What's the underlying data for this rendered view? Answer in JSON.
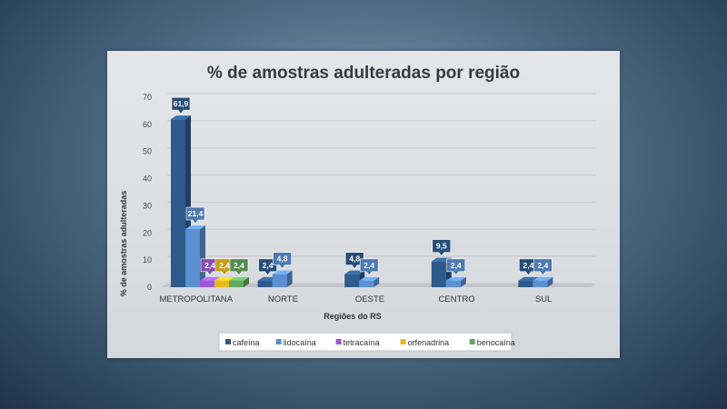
{
  "chart_data": {
    "type": "bar",
    "title": "% de amostras adulteradas por região",
    "xlabel": "Regiões do RS",
    "ylabel": "% de amostras adulteradas",
    "ylim": [
      0,
      70
    ],
    "yticks": [
      0,
      10,
      20,
      30,
      40,
      50,
      60,
      70
    ],
    "grid": true,
    "legend_position": "bottom",
    "categories": [
      "METROPOLITANA",
      "NORTE",
      "OESTE",
      "CENTRO",
      "SUL"
    ],
    "series": [
      {
        "name": "cafeína",
        "color": "#2e5a8c",
        "values": [
          61.9,
          2.4,
          4.8,
          9.5,
          2.4
        ],
        "labels": [
          "61,9",
          "2,4",
          "4,8",
          "9,5",
          "2,4"
        ]
      },
      {
        "name": "lidocaína",
        "color": "#5b8fd0",
        "values": [
          21.4,
          4.8,
          2.4,
          2.4,
          2.4
        ],
        "labels": [
          "21,4",
          "4,8",
          "2,4",
          "2,4",
          "2,4"
        ]
      },
      {
        "name": "tetracaína",
        "color": "#9b59d6",
        "values": [
          2.4,
          null,
          null,
          null,
          null
        ],
        "labels": [
          "2,4",
          "",
          "",
          "",
          ""
        ]
      },
      {
        "name": "orfenadrina",
        "color": "#e8b71c",
        "values": [
          2.4,
          null,
          null,
          null,
          null
        ],
        "labels": [
          "2,4",
          "",
          "",
          "",
          ""
        ]
      },
      {
        "name": "benocaína",
        "color": "#63a65d",
        "values": [
          2.4,
          null,
          null,
          null,
          null
        ],
        "labels": [
          "2,4",
          "",
          "",
          "",
          ""
        ]
      }
    ]
  }
}
